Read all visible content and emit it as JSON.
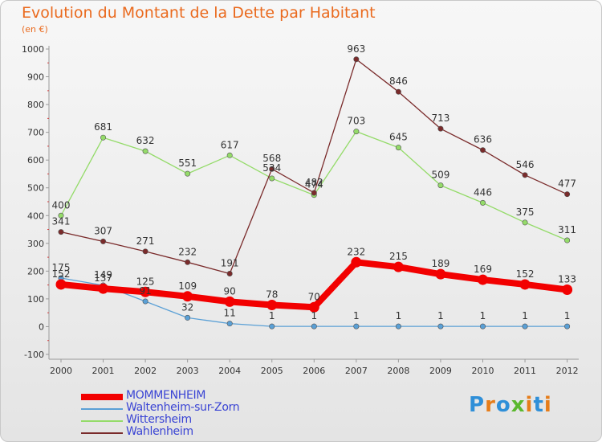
{
  "title": "Evolution du Montant de la Dette par Habitant",
  "subtitle": "(en €)",
  "brand": {
    "text": "Proxiti",
    "colors": [
      "#2f8fd8",
      "#e67d1a",
      "#2f8fd8",
      "#5bb82e",
      "#e67d1a",
      "#2f8fd8",
      "#e67d1a"
    ]
  },
  "chart_data": {
    "type": "line",
    "title": "Evolution du Montant de la Dette par Habitant",
    "ylabel": "(en €)",
    "x": [
      "2000",
      "2001",
      "2002",
      "2003",
      "2004",
      "2005",
      "2006",
      "2007",
      "2008",
      "2009",
      "2010",
      "2011",
      "2012"
    ],
    "ylim": [
      -100,
      1000
    ],
    "yticks": [
      "-100",
      "0",
      "100",
      "200",
      "300",
      "400",
      "500",
      "600",
      "700",
      "800",
      "900",
      "1000"
    ],
    "grid": false,
    "legend": "bottom-left",
    "series": [
      {
        "name": "MOMMENHEIM",
        "color": "#f20000",
        "width": "thick",
        "values": [
          152,
          137,
          125,
          109,
          90,
          78,
          70,
          232,
          215,
          189,
          169,
          152,
          133
        ],
        "labels": [
          "152",
          "137",
          "125",
          "109",
          "90",
          "78",
          "70",
          "232",
          "215",
          "189",
          "169",
          "152",
          "133"
        ]
      },
      {
        "name": "Waltenheim-sur-Zorn",
        "color": "#5aa0d6",
        "width": "thin",
        "values": [
          175,
          149,
          91,
          32,
          11,
          1,
          1,
          1,
          1,
          1,
          1,
          1,
          1
        ],
        "labels": [
          "175",
          "149",
          "91",
          "32",
          "11",
          "1",
          "1",
          "1",
          "1",
          "1",
          "1",
          "1",
          "1"
        ]
      },
      {
        "name": "Wittersheim",
        "color": "#94db69",
        "width": "thin",
        "values": [
          400,
          681,
          632,
          551,
          617,
          534,
          474,
          703,
          645,
          509,
          446,
          375,
          311
        ],
        "labels": [
          "400",
          "681",
          "632",
          "551",
          "617",
          "534",
          "474",
          "703",
          "645",
          "509",
          "446",
          "375",
          "311"
        ]
      },
      {
        "name": "Wahlenheim",
        "color": "#7a2b2b",
        "width": "thin",
        "values": [
          341,
          307,
          271,
          232,
          191,
          568,
          482,
          963,
          846,
          713,
          636,
          546,
          477
        ],
        "labels": [
          "341",
          "307",
          "271",
          "232",
          "191",
          "568",
          "482",
          "963",
          "846",
          "713",
          "636",
          "546",
          "477"
        ]
      }
    ]
  }
}
